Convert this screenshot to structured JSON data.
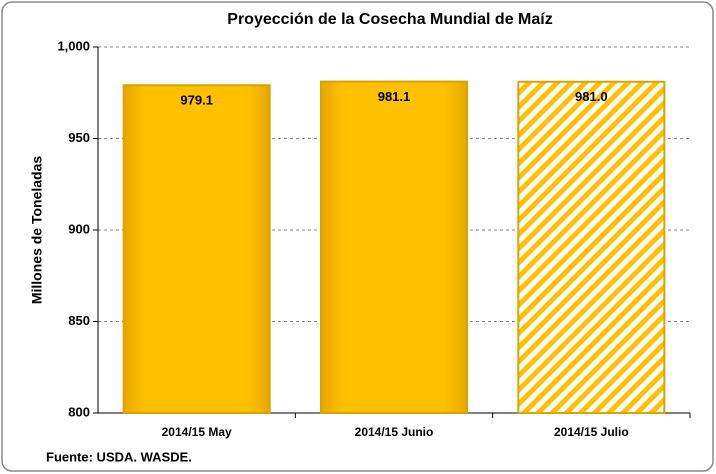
{
  "chart_data": {
    "type": "bar",
    "title": "Proyección de la Cosecha Mundial de Maíz",
    "y_label": "Millones de Toneladas",
    "source": "Fuente: USDA.  WASDE.",
    "categories": [
      "2014/15 May",
      "2014/15 Junio",
      "2014/15 Julio"
    ],
    "values": [
      979.1,
      981.1,
      981.0
    ],
    "value_labels": [
      "979.1",
      "981.1",
      "981.0"
    ],
    "hatch": [
      false,
      false,
      true
    ],
    "color": "#ffc000",
    "ylim": [
      800,
      1000
    ],
    "yticks": [
      800,
      850,
      900,
      950,
      {
        "value": 1000,
        "label": "1,000"
      }
    ],
    "grid": true
  }
}
